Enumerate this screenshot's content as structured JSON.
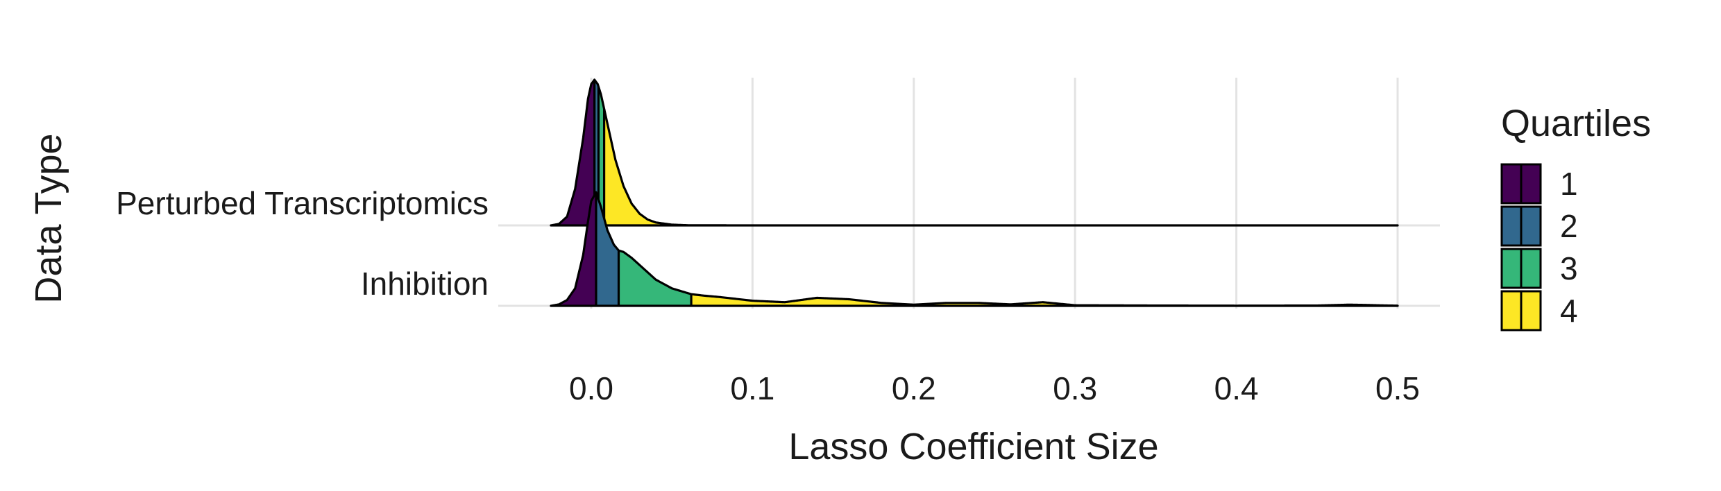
{
  "chart_data": {
    "type": "ridgeline",
    "xlabel": "Lasso Coefficient Size",
    "ylabel": "Data Type",
    "xlim": [
      -0.03,
      0.5
    ],
    "xticks": [
      0.0,
      0.1,
      0.2,
      0.3,
      0.4,
      0.5
    ],
    "xtick_labels": [
      "0.0",
      "0.1",
      "0.2",
      "0.3",
      "0.4",
      "0.5"
    ],
    "grid": true,
    "legend": {
      "title": "Quartiles",
      "position": "right",
      "entries": [
        {
          "label": "1",
          "color": "#440154"
        },
        {
          "label": "2",
          "color": "#31688E"
        },
        {
          "label": "3",
          "color": "#35B779"
        },
        {
          "label": "4",
          "color": "#FDE725"
        }
      ]
    },
    "series": [
      {
        "name": "Perturbed Transcriptomics",
        "quartile_breaks": [
          0.002,
          0.0045,
          0.008
        ],
        "density_x": [
          -0.025,
          -0.02,
          -0.015,
          -0.01,
          -0.005,
          -0.002,
          0.0,
          0.002,
          0.004,
          0.006,
          0.008,
          0.01,
          0.015,
          0.02,
          0.025,
          0.03,
          0.035,
          0.04,
          0.05,
          0.06,
          0.1,
          0.2,
          0.3,
          0.4,
          0.5
        ],
        "density_y": [
          0.0,
          0.01,
          0.06,
          0.25,
          0.6,
          0.87,
          0.97,
          1.0,
          0.97,
          0.9,
          0.8,
          0.7,
          0.45,
          0.27,
          0.15,
          0.08,
          0.04,
          0.02,
          0.005,
          0.001,
          0.0,
          0.0,
          0.0,
          0.0,
          0.0
        ]
      },
      {
        "name": "Inhibition",
        "quartile_breaks": [
          0.003,
          0.017,
          0.062
        ],
        "density_x": [
          -0.025,
          -0.02,
          -0.015,
          -0.01,
          -0.005,
          -0.002,
          0.0,
          0.003,
          0.006,
          0.01,
          0.014,
          0.017,
          0.02,
          0.025,
          0.03,
          0.035,
          0.04,
          0.05,
          0.062,
          0.07,
          0.08,
          0.1,
          0.12,
          0.14,
          0.16,
          0.18,
          0.2,
          0.22,
          0.24,
          0.26,
          0.28,
          0.3,
          0.35,
          0.4,
          0.45,
          0.47,
          0.48,
          0.49,
          0.5
        ],
        "density_y": [
          0.0,
          0.01,
          0.04,
          0.12,
          0.35,
          0.58,
          0.72,
          0.78,
          0.68,
          0.52,
          0.42,
          0.38,
          0.37,
          0.33,
          0.28,
          0.23,
          0.18,
          0.12,
          0.08,
          0.07,
          0.06,
          0.035,
          0.025,
          0.055,
          0.045,
          0.02,
          0.008,
          0.02,
          0.02,
          0.01,
          0.025,
          0.004,
          0.002,
          0.001,
          0.002,
          0.008,
          0.006,
          0.003,
          0.001
        ]
      }
    ]
  }
}
